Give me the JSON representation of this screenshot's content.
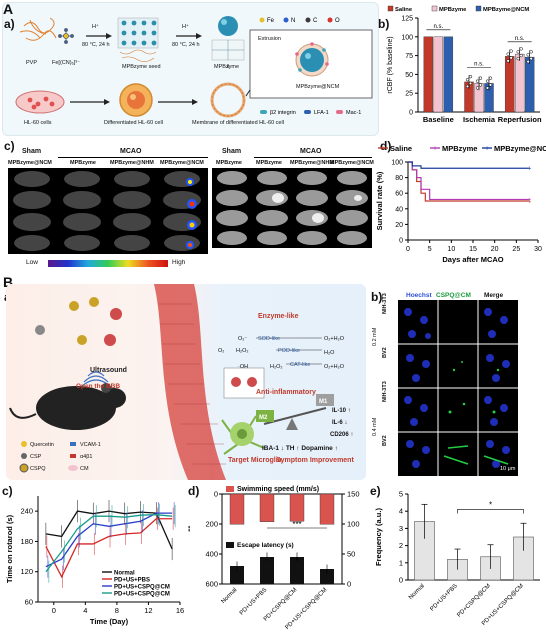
{
  "sectionA": {
    "letter": "A",
    "sub_a": "a)",
    "sub_b": "b)",
    "sub_c": "c)",
    "sub_d": "d)"
  },
  "sectionB": {
    "letter": "B",
    "sub_a": "a)",
    "sub_b": "b)",
    "sub_c": "c)",
    "sub_d": "d)",
    "sub_e": "e)"
  },
  "schemeA": {
    "h_plus_1": "H⁺",
    "cond_1": "80 °C, 24 h",
    "h_plus_2": "H⁺",
    "cond_2": "80 °C, 24 h",
    "pvp": "PVP",
    "fe_complex": "Fe[(CN)₆]³⁻",
    "seed": "MPBzyme seed",
    "mpbzyme": "MPBzyme",
    "extrusion": "Extrusion",
    "product": "MPBzyme@NCM",
    "hl60": "HL-60 cells",
    "diff_cell": "Differentiated HL-60 cell",
    "membrane": "Membrane of differentiated HL-60 cell",
    "legend_elements": [
      "Fe",
      "N",
      "C",
      "O"
    ],
    "legend_elements_colors": [
      "#e8c02a",
      "#2a5fd0",
      "#3a3a3a",
      "#d8342c"
    ],
    "legend_proteins": [
      "β2 integrin",
      "LFA-1",
      "Mac-1"
    ]
  },
  "rcbf_chart": {
    "ylabel": "rCBF (% baseline)",
    "legend": [
      "Saline",
      "MPBzyme",
      "MPBzyme@NCM"
    ],
    "ns1": "n.s.",
    "ns2": "n.s.",
    "ns3": "n.s."
  },
  "mri_panel": {
    "left_headers": [
      "Sham",
      "MCAO"
    ],
    "left_cols": [
      "MPBzyme@NCM",
      "MPBzyme",
      "MPBzyme@NHM",
      "MPBzyme@NCM"
    ],
    "right_headers": [
      "Sham",
      "MCAO"
    ],
    "right_cols": [
      "MPBzyme",
      "MPBzyme",
      "MPBzyme@NHM",
      "MPBzyme@NCM"
    ],
    "low": "Low",
    "high": "High"
  },
  "survival_chart": {
    "legend": [
      "Saline",
      "MPBzyme",
      "MPBzyme@NCM"
    ],
    "ylabel": "Survival rate (%)",
    "xlabel": "Days after MCAO"
  },
  "schemeB": {
    "ultrasound": "Ultrasound",
    "open_bbb": "Open the BBB",
    "enzyme_like": "Enzyme-like",
    "anti_inflam": "Anti-inflammatory",
    "target_microglia": "Target Microglia",
    "legend_items": [
      "Quercetin",
      "CSP",
      "CSPQ",
      "VCAM-1",
      "α4β1",
      "CM"
    ],
    "sod_like": "SOD-like",
    "pod_like": "POD-like",
    "cat_like": "CAT-like",
    "m1": "M1",
    "m2": "M2",
    "il10": "IL-10 ↑",
    "il6": "IL-6 ↓",
    "cd206": "CD206 ↑",
    "symptom_line": "IBA-1 ↓ TH ↑ Dopamine ↑",
    "symptom": "Symptom Improvement",
    "h2o_1": "O₂+H₂O",
    "h2o_2": "H₂O",
    "h2o_3": "O₂+H₂O",
    "o2minus": "O₂⁻",
    "h2o2": "H₂O₂",
    "oh": "·OH",
    "o2": "O₂",
    "h2o2b": "H₂O₂"
  },
  "fluor_panel": {
    "cols": [
      "Hoechst",
      "CSPQ@CM",
      "Merge"
    ],
    "rows": [
      "NIH-3T3",
      "BV2",
      "NIH-3T3",
      "BV2"
    ],
    "conc": [
      "0.2 mM",
      "0.4 mM"
    ],
    "scale": "10 μm"
  },
  "chart_data": [
    {
      "type": "bar",
      "categories": [
        "Baseline",
        "Ischemia",
        "Reperfusion"
      ],
      "series": [
        {
          "name": "Saline",
          "values": [
            100,
            40,
            74
          ],
          "color": "#c0392b"
        },
        {
          "name": "MPBzyme",
          "values": [
            100,
            38,
            77
          ],
          "color": "#f2c4cf"
        },
        {
          "name": "MPBzyme@NCM",
          "values": [
            100,
            38,
            73
          ],
          "color": "#2e5fae"
        }
      ],
      "ylabel": "rCBF (% baseline)",
      "ylim": [
        0,
        125
      ],
      "yticks": [
        0,
        25,
        50,
        75,
        100,
        125
      ]
    },
    {
      "type": "line",
      "xlabel": "Days after MCAO",
      "ylabel": "Survival rate (%)",
      "xlim": [
        0,
        30
      ],
      "ylim": [
        0,
        100
      ],
      "xticks": [
        0,
        5,
        10,
        15,
        20,
        25,
        30
      ],
      "yticks": [
        0,
        20,
        40,
        60,
        80,
        100
      ],
      "series": [
        {
          "name": "Saline",
          "x": [
            0,
            1,
            1,
            2,
            2,
            3,
            3,
            4,
            4,
            28
          ],
          "y": [
            100,
            100,
            90,
            90,
            75,
            75,
            60,
            60,
            50,
            50
          ],
          "color": "#c0392b"
        },
        {
          "name": "MPBzyme",
          "x": [
            0,
            1,
            1,
            2,
            2,
            3,
            3,
            5,
            5,
            28
          ],
          "y": [
            100,
            100,
            90,
            90,
            80,
            80,
            65,
            65,
            52,
            52
          ],
          "color": "#b23bb5"
        },
        {
          "name": "MPBzyme@NCM",
          "x": [
            0,
            1,
            1,
            3,
            3,
            28
          ],
          "y": [
            100,
            100,
            95,
            95,
            92,
            92
          ],
          "color": "#1f3f9a"
        }
      ]
    },
    {
      "type": "line",
      "xlabel": "Time (Day)",
      "ylabel": "Time on rotarod (s)",
      "xlim": [
        -2,
        16
      ],
      "ylim": [
        60,
        270
      ],
      "xticks": [
        0,
        4,
        8,
        12,
        16
      ],
      "yticks": [
        60,
        120,
        180,
        240
      ],
      "x": [
        -1,
        1,
        3,
        5,
        7,
        9,
        11,
        13,
        15
      ],
      "series": [
        {
          "name": "Normal",
          "values": [
            195,
            190,
            240,
            235,
            240,
            235,
            238,
            236,
            165
          ],
          "color": "#111111"
        },
        {
          "name": "PD+US+PBS",
          "values": [
            170,
            110,
            175,
            175,
            190,
            195,
            197,
            225,
            225
          ],
          "color": "#d62728"
        },
        {
          "name": "PD+US+CSPQ@CM",
          "values": [
            130,
            145,
            190,
            215,
            210,
            215,
            220,
            236,
            236
          ],
          "color": "#2a3cc9"
        },
        {
          "name": "PD+US+CSPQ@CM",
          "values": [
            120,
            160,
            205,
            230,
            230,
            228,
            232,
            233,
            230
          ],
          "color": "#1a9c8c"
        }
      ],
      "sig": "**"
    },
    {
      "type": "bar",
      "categories": [
        "Normal",
        "PD+US+PBS",
        "PD+CSPQ@CM",
        "PD+US+CSPQ@CM"
      ],
      "series": [
        {
          "name": "Swimming speed (mm/s)",
          "values": [
            120,
            110,
            108,
            120
          ],
          "color": "#d9534f",
          "axis": "top-inverted",
          "ylim": [
            0,
            150
          ],
          "yticks": [
            0,
            50,
            100,
            150
          ]
        },
        {
          "name": "Escape latency (s)",
          "values": [
            480,
            420,
            420,
            500
          ],
          "color": "#111111",
          "axis": "bottom-inverted",
          "ylim": [
            0,
            600
          ],
          "yticks": [
            0,
            200,
            400,
            600
          ]
        }
      ],
      "sig": "***",
      "sig2": "*"
    },
    {
      "type": "bar",
      "categories": [
        "Normal",
        "PD+US+PBS",
        "PD+CSPQ@CM",
        "PD+US+CSPQ@CM"
      ],
      "values": [
        3.4,
        1.2,
        1.35,
        2.5
      ],
      "errors": [
        1.0,
        0.6,
        0.7,
        0.8
      ],
      "ylabel": "Frequency (a.u.)",
      "ylim": [
        0,
        5
      ],
      "yticks": [
        0,
        1,
        2,
        3,
        4,
        5
      ],
      "sig": "*"
    }
  ]
}
